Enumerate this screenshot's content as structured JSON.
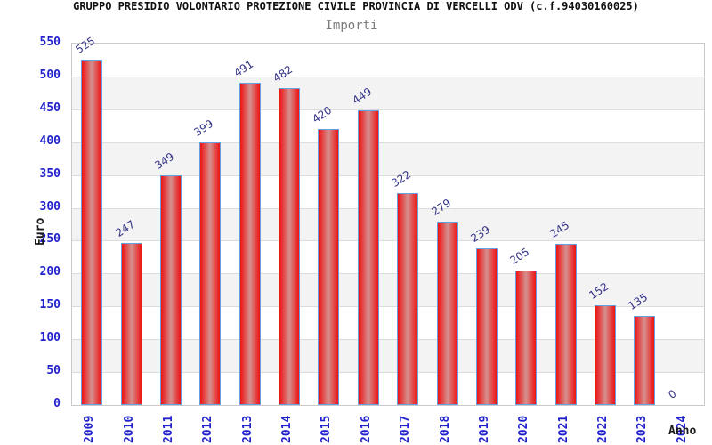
{
  "header": {
    "title": "GRUPPO PRESIDIO VOLONTARIO PROTEZIONE CIVILE PROVINCIA DI VERCELLI ODV (c.f.94030160025)",
    "subtitle": "Importi"
  },
  "chart_data": {
    "type": "bar",
    "title": "GRUPPO PRESIDIO VOLONTARIO PROTEZIONE CIVILE PROVINCIA DI VERCELLI ODV (c.f.94030160025)",
    "subtitle": "Importi",
    "xlabel": "Anno",
    "ylabel": "Euro",
    "categories": [
      "2009",
      "2010",
      "2011",
      "2012",
      "2013",
      "2014",
      "2015",
      "2016",
      "2017",
      "2018",
      "2019",
      "2020",
      "2021",
      "2022",
      "2023",
      "2024"
    ],
    "values": [
      525,
      247,
      349,
      399,
      491,
      482,
      420,
      449,
      322,
      279,
      239,
      205,
      245,
      152,
      135,
      0
    ],
    "ylim": [
      0,
      550
    ],
    "ytick_step": 50,
    "grid": true,
    "legend": "none",
    "colors": {
      "bar_edge_red": "#ee1212",
      "bar_center_red": "#d59090",
      "bar_border_blue": "#66a0e0",
      "axis_tick_blue": "#2222cc",
      "value_label_navy": "#333388",
      "band_gray": "#f3f3f3",
      "gridline_gray": "#dcdcdc",
      "subtitle_gray": "#7a7a7a"
    }
  }
}
